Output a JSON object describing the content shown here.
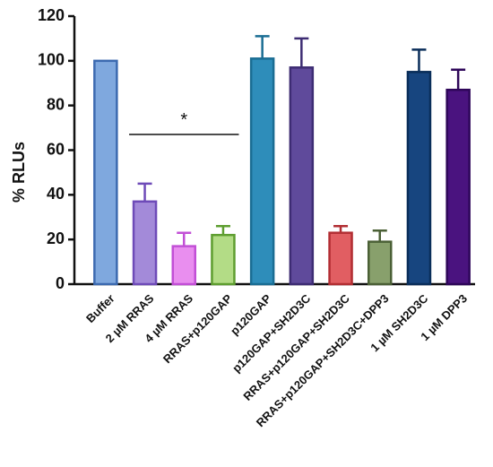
{
  "chart_data": {
    "type": "bar",
    "ylabel": "% RLUs",
    "ylim": [
      0,
      120
    ],
    "yticks": [
      0,
      20,
      40,
      60,
      80,
      100,
      120
    ],
    "categories": [
      "Buffer",
      "2 µM RRAS",
      "4 µM RRAS",
      "RRAS+p120GAP",
      "p120GAP",
      "p120GAP+SH2D3C",
      "RRAS+p120GAP+SH2D3C",
      "RRAS+p120GAP+SH2D3C+DPP3",
      "1 µM SH2D3C",
      "1 µM DPP3"
    ],
    "values": [
      100,
      37,
      17,
      22,
      101,
      97,
      23,
      19,
      95,
      87
    ],
    "errors": [
      0,
      8,
      6,
      4,
      10,
      13,
      3,
      5,
      10,
      9
    ],
    "fill_colors": [
      "#7FA8DE",
      "#A38AD9",
      "#E98EEF",
      "#B3DC86",
      "#2E8DBA",
      "#5F4A9B",
      "#E15E62",
      "#88A06C",
      "#17457F",
      "#4A137F"
    ],
    "edge_colors": [
      "#3C6AB0",
      "#6E4BB8",
      "#C24FD6",
      "#5E9E30",
      "#1A6D93",
      "#3D2C73",
      "#B22E33",
      "#4B6036",
      "#0A2E5A",
      "#2E0659"
    ],
    "significance": {
      "from_category": 1,
      "to_category": 3,
      "y": 67,
      "label": "*"
    }
  }
}
